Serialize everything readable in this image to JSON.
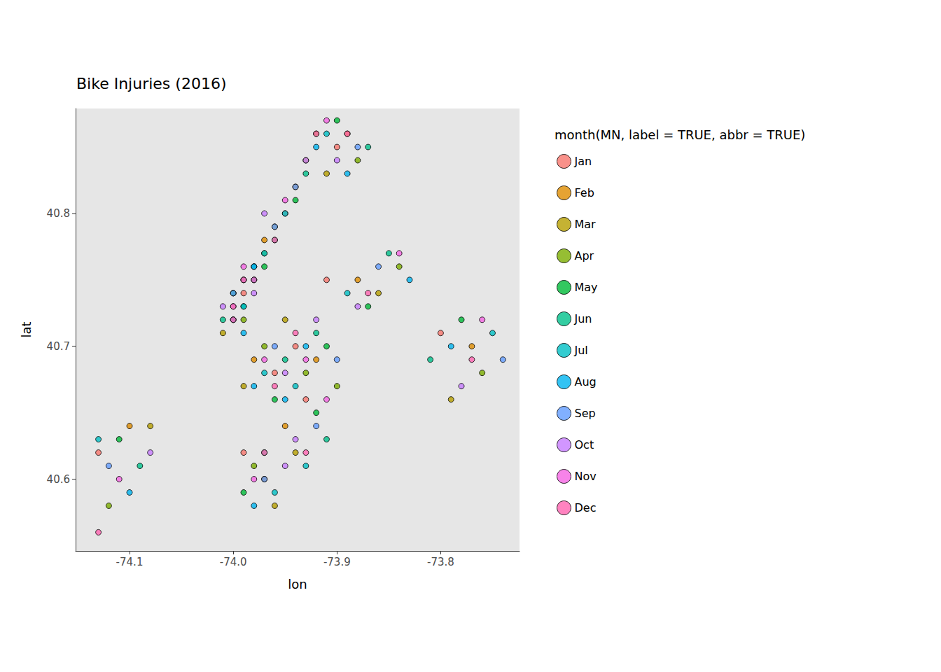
{
  "chart_data": {
    "type": "scatter",
    "title": "Bike Injuries (2016)",
    "x_label": "lon",
    "y_label": "lat",
    "legend_title": "month(MN, label = TRUE, abbr = TRUE)",
    "legend": "right",
    "grid": false,
    "marker": "circle",
    "xlim": [
      -74.152,
      -73.724
    ],
    "ylim": [
      40.546,
      40.879
    ],
    "xticks": [
      {
        "value": -74.1,
        "label": "-74.1"
      },
      {
        "value": -74,
        "label": "-74.0"
      },
      {
        "value": -73.9,
        "label": "-73.9"
      },
      {
        "value": -73.8,
        "label": "-73.8"
      }
    ],
    "yticks": [
      40.6,
      40.7,
      40.8
    ],
    "series": [
      {
        "name": "Jan",
        "color": "#F8766D",
        "x": [
          -73.99,
          -73.98,
          -73.95,
          -73.96,
          -73.94,
          -73.91,
          -73.99,
          -73.9,
          -74.13,
          -73.8,
          -74.0,
          -73.93
        ],
        "y": [
          40.74,
          40.76,
          40.8,
          40.68,
          40.7,
          40.75,
          40.62,
          40.85,
          40.62,
          40.71,
          40.72,
          40.66
        ]
      },
      {
        "name": "Feb",
        "color": "#DE8C00",
        "x": [
          -74.0,
          -73.97,
          -73.94,
          -73.98,
          -73.92,
          -73.88,
          -73.97,
          -73.89,
          -74.1,
          -73.77,
          -73.99,
          -73.95
        ],
        "y": [
          40.73,
          40.78,
          40.82,
          40.69,
          40.69,
          40.75,
          40.6,
          40.86,
          40.64,
          40.7,
          40.75,
          40.64
        ]
      },
      {
        "name": "Mar",
        "color": "#B79F00",
        "x": [
          -73.98,
          -73.96,
          -73.93,
          -73.99,
          -73.95,
          -73.86,
          -73.96,
          -73.91,
          -74.08,
          -73.79,
          -74.01,
          -73.94
        ],
        "y": [
          40.75,
          40.79,
          40.84,
          40.67,
          40.72,
          40.74,
          40.58,
          40.83,
          40.64,
          40.66,
          40.71,
          40.62
        ]
      },
      {
        "name": "Apr",
        "color": "#7CAE00",
        "x": [
          -73.99,
          -73.97,
          -73.92,
          -73.97,
          -73.93,
          -73.84,
          -73.98,
          -73.88,
          -74.12,
          -73.76,
          -74.0,
          -73.9
        ],
        "y": [
          40.72,
          40.77,
          40.86,
          40.7,
          40.68,
          40.76,
          40.61,
          40.84,
          40.58,
          40.68,
          40.74,
          40.67
        ]
      },
      {
        "name": "May",
        "color": "#00BA38",
        "x": [
          -74.0,
          -73.98,
          -73.94,
          -73.96,
          -73.91,
          -73.87,
          -73.99,
          -73.9,
          -74.11,
          -73.78,
          -73.97,
          -73.92
        ],
        "y": [
          40.74,
          40.75,
          40.81,
          40.66,
          40.7,
          40.73,
          40.59,
          40.87,
          40.63,
          40.72,
          40.76,
          40.65
        ]
      },
      {
        "name": "Jun",
        "color": "#00C08B",
        "x": [
          -73.99,
          -73.96,
          -73.93,
          -73.95,
          -73.92,
          -73.85,
          -73.97,
          -73.87,
          -74.09,
          -73.81,
          -74.01,
          -73.91
        ],
        "y": [
          40.73,
          40.78,
          40.83,
          40.69,
          40.71,
          40.77,
          40.62,
          40.85,
          40.61,
          40.69,
          40.72,
          40.63
        ]
      },
      {
        "name": "Jul",
        "color": "#00BFC4",
        "x": [
          -73.98,
          -73.97,
          -73.95,
          -73.97,
          -73.94,
          -73.89,
          -73.96,
          -73.91,
          -74.13,
          -73.75,
          -73.99,
          -73.93
        ],
        "y": [
          40.76,
          40.77,
          40.8,
          40.68,
          40.67,
          40.74,
          40.59,
          40.86,
          40.63,
          40.71,
          40.73,
          40.61
        ]
      },
      {
        "name": "Aug",
        "color": "#00B4F0",
        "x": [
          -74.0,
          -73.98,
          -73.92,
          -73.98,
          -73.93,
          -73.83,
          -73.98,
          -73.89,
          -74.1,
          -73.79,
          -73.99,
          -73.95
        ],
        "y": [
          40.72,
          40.76,
          40.85,
          40.67,
          40.7,
          40.75,
          40.58,
          40.83,
          40.59,
          40.7,
          40.71,
          40.66
        ]
      },
      {
        "name": "Sep",
        "color": "#619CFF",
        "x": [
          -73.99,
          -73.96,
          -73.94,
          -73.96,
          -73.9,
          -73.86,
          -73.97,
          -73.88,
          -74.12,
          -73.74,
          -74.0,
          -73.92
        ],
        "y": [
          40.75,
          40.79,
          40.82,
          40.7,
          40.69,
          40.76,
          40.6,
          40.85,
          40.61,
          40.69,
          40.74,
          40.64
        ]
      },
      {
        "name": "Oct",
        "color": "#C77CFF",
        "x": [
          -73.98,
          -73.97,
          -73.93,
          -73.95,
          -73.92,
          -73.88,
          -73.95,
          -73.9,
          -74.08,
          -73.78,
          -74.01,
          -73.94
        ],
        "y": [
          40.74,
          40.8,
          40.84,
          40.68,
          40.72,
          40.73,
          40.61,
          40.84,
          40.62,
          40.67,
          40.73,
          40.63
        ]
      },
      {
        "name": "Nov",
        "color": "#F564E3",
        "x": [
          -74.0,
          -73.98,
          -73.95,
          -73.97,
          -73.93,
          -73.84,
          -73.98,
          -73.91,
          -74.11,
          -73.76,
          -73.99,
          -73.91
        ],
        "y": [
          40.73,
          40.75,
          40.81,
          40.69,
          40.69,
          40.77,
          40.6,
          40.87,
          40.6,
          40.72,
          40.76,
          40.66
        ]
      },
      {
        "name": "Dec",
        "color": "#FF64B0",
        "x": [
          -73.99,
          -73.96,
          -73.92,
          -73.96,
          -73.94,
          -73.87,
          -73.97,
          -73.89,
          -74.13,
          -73.77,
          -74.0,
          -73.93
        ],
        "y": [
          40.75,
          40.78,
          40.86,
          40.67,
          40.71,
          40.74,
          40.62,
          40.86,
          40.56,
          40.69,
          40.72,
          40.62
        ]
      }
    ]
  }
}
